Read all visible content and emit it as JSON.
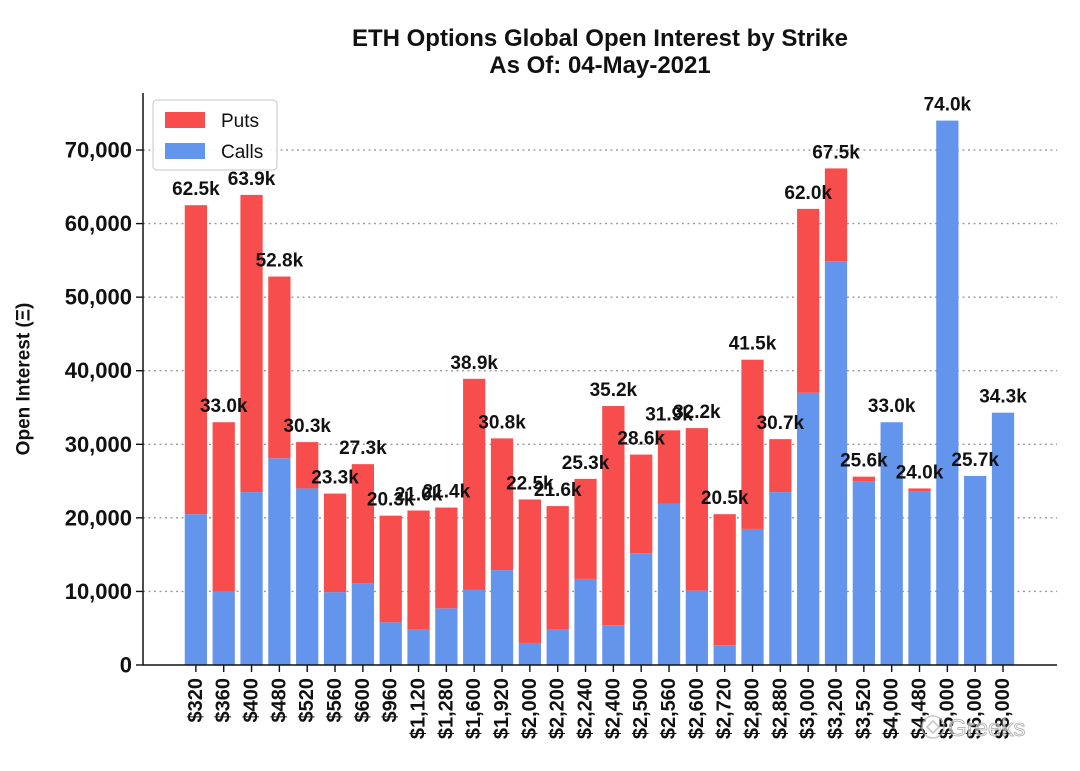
{
  "chart_data": {
    "type": "bar",
    "stacked": true,
    "title": "ETH Options Global Open Interest by Strike",
    "subtitle": "As Of: 04-May-2021",
    "ylabel": "Open Interest (Ξ)",
    "categories": [
      "$320",
      "$360",
      "$400",
      "$480",
      "$520",
      "$560",
      "$600",
      "$960",
      "$1,120",
      "$1,280",
      "$1,600",
      "$1,920",
      "$2,000",
      "$2,200",
      "$2,240",
      "$2,400",
      "$2,500",
      "$2,560",
      "$2,600",
      "$2,720",
      "$2,800",
      "$2,880",
      "$3,000",
      "$3,200",
      "$3,520",
      "$4,000",
      "$4,480",
      "$5,000",
      "$6,000",
      "$8,000"
    ],
    "series": [
      {
        "name": "Calls",
        "color": "#6495ED",
        "values": [
          20500,
          10000,
          23500,
          28100,
          24000,
          9900,
          11100,
          5800,
          4800,
          7700,
          10200,
          12900,
          3000,
          4800,
          11700,
          5400,
          15200,
          21900,
          10100,
          2700,
          18500,
          23500,
          37000,
          54900,
          25000,
          33000,
          23600,
          74000,
          25700,
          34300
        ]
      },
      {
        "name": "Puts",
        "color": "#F74D4D",
        "values": [
          42000,
          23000,
          40400,
          24700,
          6300,
          13400,
          16200,
          14500,
          16200,
          13700,
          28700,
          17900,
          19500,
          16800,
          13600,
          29800,
          13400,
          10000,
          22100,
          17800,
          23000,
          7200,
          25000,
          12600,
          600,
          0,
          400,
          0,
          0,
          0
        ]
      }
    ],
    "total_labels": [
      "62.5k",
      "33.0k",
      "63.9k",
      "52.8k",
      "30.3k",
      "23.3k",
      "27.3k",
      "20.3k",
      "21.0k",
      "21.4k",
      "38.9k",
      "30.8k",
      "22.5k",
      "21.6k",
      "25.3k",
      "35.2k",
      "28.6k",
      "31.9k",
      "32.2k",
      "20.5k",
      "41.5k",
      "30.7k",
      "62.0k",
      "67.5k",
      "25.6k",
      "33.0k",
      "24.0k",
      "74.0k",
      "25.7k",
      "34.3k"
    ],
    "ylim": [
      0,
      77750
    ],
    "yticks": [
      0,
      10000,
      20000,
      30000,
      40000,
      50000,
      60000,
      70000
    ],
    "ytick_labels": [
      "0",
      "10,000",
      "20,000",
      "30,000",
      "40,000",
      "50,000",
      "60,000",
      "70,000"
    ],
    "grid": true,
    "grid_style": "dotted",
    "legend": {
      "position": "upper-left"
    }
  },
  "watermark": {
    "text": "Greeks"
  }
}
